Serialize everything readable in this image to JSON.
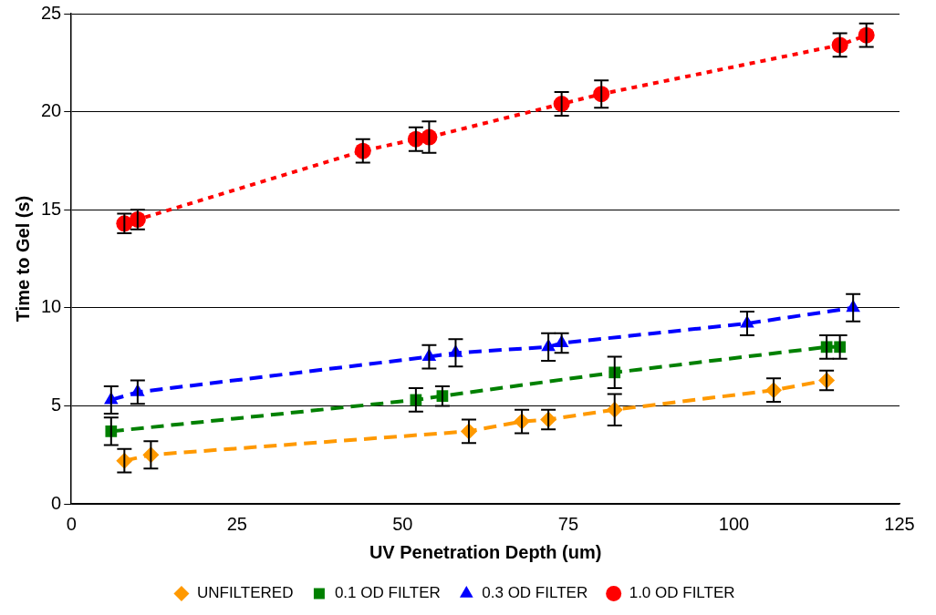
{
  "chart_data": {
    "type": "line",
    "xlabel": "UV Penetration Depth (um)",
    "ylabel": "Time to Gel (s)",
    "xlim": [
      0,
      125
    ],
    "xticks": [
      0,
      25,
      50,
      75,
      100,
      125
    ],
    "ylim": [
      0,
      25
    ],
    "yticks": [
      0,
      5,
      10,
      15,
      20,
      25
    ],
    "grid": "y",
    "legend": "bottom",
    "series": [
      {
        "name": "UNFILTERED",
        "color": "#ff9900",
        "marker": "diamond",
        "line_style": "dashed",
        "x": [
          8,
          12,
          60,
          68,
          72,
          82,
          106,
          114
        ],
        "values": [
          2.2,
          2.5,
          3.7,
          4.2,
          4.3,
          4.8,
          5.8,
          6.3
        ],
        "errors": [
          0.6,
          0.7,
          0.6,
          0.6,
          0.5,
          0.8,
          0.6,
          0.5
        ]
      },
      {
        "name": "0.1 OD FILTER",
        "color": "#008000",
        "marker": "square",
        "line_style": "dashed",
        "x": [
          6,
          52,
          56,
          82,
          114,
          116
        ],
        "values": [
          3.7,
          5.3,
          5.5,
          6.7,
          8.0,
          8.0
        ],
        "errors": [
          0.7,
          0.6,
          0.5,
          0.8,
          0.6,
          0.6
        ]
      },
      {
        "name": "0.3 OD FILTER",
        "color": "#0000ff",
        "marker": "triangle",
        "line_style": "dashed",
        "x": [
          6,
          10,
          54,
          58,
          72,
          74,
          102,
          118
        ],
        "values": [
          5.3,
          5.7,
          7.5,
          7.7,
          8.0,
          8.2,
          9.2,
          10.0
        ],
        "errors": [
          0.7,
          0.6,
          0.6,
          0.7,
          0.7,
          0.5,
          0.6,
          0.7
        ]
      },
      {
        "name": "1.0 OD FILTER",
        "color": "#ff0000",
        "marker": "circle",
        "line_style": "dotted",
        "x": [
          8,
          10,
          44,
          52,
          54,
          74,
          80,
          116,
          120
        ],
        "values": [
          14.3,
          14.5,
          18.0,
          18.6,
          18.7,
          20.4,
          20.9,
          23.4,
          23.9
        ],
        "errors": [
          0.5,
          0.5,
          0.6,
          0.6,
          0.8,
          0.6,
          0.7,
          0.6,
          0.6
        ]
      }
    ]
  }
}
